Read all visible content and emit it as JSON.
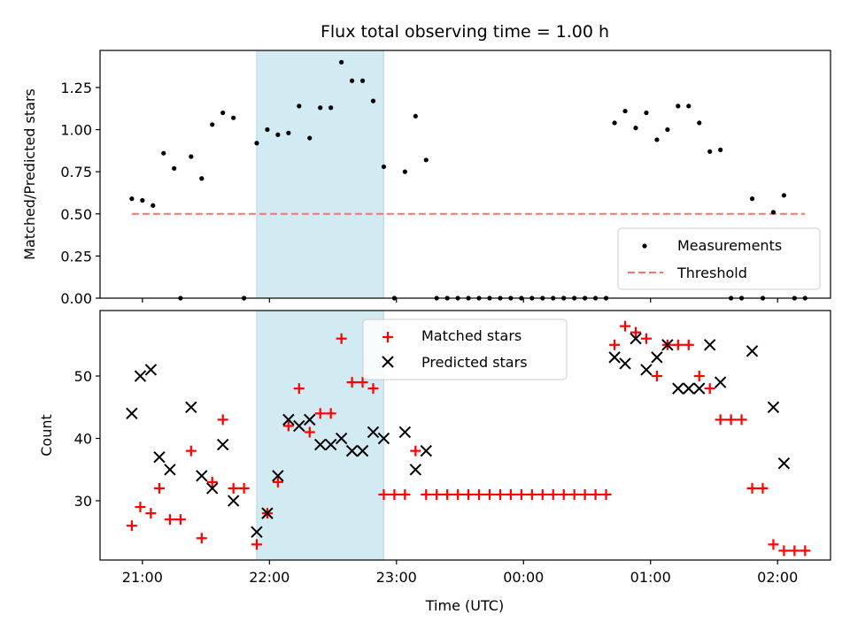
{
  "title": "Flux total observing time = 1.00 h",
  "colors": {
    "shade": "#add8e6",
    "threshold": "#ff7070",
    "matched": "#ff0000",
    "predicted": "#000000"
  },
  "chart_data": [
    {
      "type": "scatter",
      "ylabel": "Matched/Predicted stars",
      "xlabel": "",
      "xlim": [
        "20:40",
        "02:25"
      ],
      "ylim": [
        0,
        1.47
      ],
      "yticks": [
        0.0,
        0.25,
        0.5,
        0.75,
        1.0,
        1.25
      ],
      "ytick_labels": [
        "0.00",
        "0.25",
        "0.50",
        "0.75",
        "1.00",
        "1.25"
      ],
      "shaded_span": [
        "21:54",
        "22:54"
      ],
      "legend": {
        "placement": "lower-right",
        "entries": [
          "Measurements",
          "Threshold"
        ]
      },
      "series": [
        {
          "name": "Measurements",
          "marker": "dot",
          "points": [
            [
              "20:55",
              0.59
            ],
            [
              "21:00",
              0.58
            ],
            [
              "21:05",
              0.55
            ],
            [
              "21:10",
              0.86
            ],
            [
              "21:15",
              0.77
            ],
            [
              "21:18",
              0.0
            ],
            [
              "21:23",
              0.84
            ],
            [
              "21:28",
              0.71
            ],
            [
              "21:33",
              1.03
            ],
            [
              "21:38",
              1.1
            ],
            [
              "21:43",
              1.07
            ],
            [
              "21:48",
              0.0
            ],
            [
              "21:54",
              0.92
            ],
            [
              "21:59",
              1.0
            ],
            [
              "22:04",
              0.97
            ],
            [
              "22:09",
              0.98
            ],
            [
              "22:14",
              1.14
            ],
            [
              "22:19",
              0.95
            ],
            [
              "22:24",
              1.13
            ],
            [
              "22:29",
              1.13
            ],
            [
              "22:34",
              1.4
            ],
            [
              "22:39",
              1.29
            ],
            [
              "22:44",
              1.29
            ],
            [
              "22:49",
              1.17
            ],
            [
              "22:54",
              0.78
            ],
            [
              "22:59",
              0.0
            ],
            [
              "23:04",
              0.75
            ],
            [
              "23:09",
              1.08
            ],
            [
              "23:14",
              0.82
            ],
            [
              "23:19",
              0.0
            ],
            [
              "23:24",
              0.0
            ],
            [
              "23:29",
              0.0
            ],
            [
              "23:34",
              0.0
            ],
            [
              "23:39",
              0.0
            ],
            [
              "23:44",
              0.0
            ],
            [
              "23:49",
              0.0
            ],
            [
              "23:54",
              0.0
            ],
            [
              "23:59",
              0.0
            ],
            [
              "00:04",
              0.0
            ],
            [
              "00:09",
              0.0
            ],
            [
              "00:14",
              0.0
            ],
            [
              "00:19",
              0.0
            ],
            [
              "00:24",
              0.0
            ],
            [
              "00:29",
              0.0
            ],
            [
              "00:34",
              0.0
            ],
            [
              "00:39",
              0.0
            ],
            [
              "00:43",
              1.04
            ],
            [
              "00:48",
              1.11
            ],
            [
              "00:53",
              1.01
            ],
            [
              "00:58",
              1.1
            ],
            [
              "01:03",
              0.94
            ],
            [
              "01:08",
              1.0
            ],
            [
              "01:13",
              1.14
            ],
            [
              "01:18",
              1.14
            ],
            [
              "01:23",
              1.04
            ],
            [
              "01:28",
              0.87
            ],
            [
              "01:33",
              0.88
            ],
            [
              "01:38",
              0.0
            ],
            [
              "01:43",
              0.0
            ],
            [
              "01:48",
              0.59
            ],
            [
              "01:53",
              0.0
            ],
            [
              "01:58",
              0.51
            ],
            [
              "02:03",
              0.61
            ],
            [
              "02:08",
              0.0
            ],
            [
              "02:13",
              0.0
            ]
          ]
        },
        {
          "name": "Threshold",
          "marker": "dashed-line",
          "points": [
            [
              "20:55",
              0.5
            ],
            [
              "02:13",
              0.5
            ]
          ]
        }
      ]
    },
    {
      "type": "scatter",
      "ylabel": "Count",
      "xlabel": "Time (UTC)",
      "xlim": [
        "20:40",
        "02:25"
      ],
      "ylim": [
        20.5,
        60.5
      ],
      "yticks": [
        30,
        40,
        50
      ],
      "ytick_labels": [
        "30",
        "40",
        "50"
      ],
      "xticks": [
        "21:00",
        "22:00",
        "23:00",
        "00:00",
        "01:00",
        "02:00"
      ],
      "xtick_labels": [
        "21:00",
        "22:00",
        "23:00",
        "00:00",
        "01:00",
        "02:00"
      ],
      "shaded_span": [
        "21:54",
        "22:54"
      ],
      "legend": {
        "placement": "upper-center",
        "entries": [
          "Matched stars",
          "Predicted stars"
        ]
      },
      "series": [
        {
          "name": "Matched stars",
          "marker": "plus",
          "points": [
            [
              "20:55",
              26
            ],
            [
              "20:59",
              29
            ],
            [
              "21:04",
              28
            ],
            [
              "21:08",
              32
            ],
            [
              "21:13",
              27
            ],
            [
              "21:18",
              27
            ],
            [
              "21:23",
              38
            ],
            [
              "21:28",
              24
            ],
            [
              "21:33",
              33
            ],
            [
              "21:38",
              43
            ],
            [
              "21:43",
              32
            ],
            [
              "21:48",
              32
            ],
            [
              "21:54",
              23
            ],
            [
              "21:59",
              28
            ],
            [
              "22:04",
              33
            ],
            [
              "22:09",
              42
            ],
            [
              "22:14",
              48
            ],
            [
              "22:19",
              41
            ],
            [
              "22:24",
              44
            ],
            [
              "22:29",
              44
            ],
            [
              "22:34",
              56
            ],
            [
              "22:39",
              49
            ],
            [
              "22:44",
              49
            ],
            [
              "22:49",
              48
            ],
            [
              "22:54",
              31
            ],
            [
              "22:59",
              31
            ],
            [
              "23:04",
              31
            ],
            [
              "23:09",
              38
            ],
            [
              "23:14",
              31
            ],
            [
              "23:19",
              31
            ],
            [
              "23:24",
              31
            ],
            [
              "23:29",
              31
            ],
            [
              "23:34",
              31
            ],
            [
              "23:39",
              31
            ],
            [
              "23:44",
              31
            ],
            [
              "23:49",
              31
            ],
            [
              "23:54",
              31
            ],
            [
              "23:59",
              31
            ],
            [
              "00:04",
              31
            ],
            [
              "00:09",
              31
            ],
            [
              "00:14",
              31
            ],
            [
              "00:19",
              31
            ],
            [
              "00:24",
              31
            ],
            [
              "00:29",
              31
            ],
            [
              "00:34",
              31
            ],
            [
              "00:39",
              31
            ],
            [
              "00:43",
              55
            ],
            [
              "00:48",
              58
            ],
            [
              "00:53",
              57
            ],
            [
              "00:58",
              56
            ],
            [
              "01:03",
              50
            ],
            [
              "01:08",
              55
            ],
            [
              "01:13",
              55
            ],
            [
              "01:18",
              55
            ],
            [
              "01:23",
              50
            ],
            [
              "01:28",
              48
            ],
            [
              "01:33",
              43
            ],
            [
              "01:38",
              43
            ],
            [
              "01:43",
              43
            ],
            [
              "01:48",
              32
            ],
            [
              "01:53",
              32
            ],
            [
              "01:58",
              23
            ],
            [
              "02:03",
              22
            ],
            [
              "02:08",
              22
            ],
            [
              "02:13",
              22
            ]
          ]
        },
        {
          "name": "Predicted stars",
          "marker": "x",
          "points": [
            [
              "20:55",
              44
            ],
            [
              "20:59",
              50
            ],
            [
              "21:04",
              51
            ],
            [
              "21:08",
              37
            ],
            [
              "21:13",
              35
            ],
            [
              "21:23",
              45
            ],
            [
              "21:28",
              34
            ],
            [
              "21:33",
              32
            ],
            [
              "21:38",
              39
            ],
            [
              "21:43",
              30
            ],
            [
              "21:54",
              25
            ],
            [
              "21:59",
              28
            ],
            [
              "22:04",
              34
            ],
            [
              "22:09",
              43
            ],
            [
              "22:14",
              42
            ],
            [
              "22:19",
              43
            ],
            [
              "22:24",
              39
            ],
            [
              "22:29",
              39
            ],
            [
              "22:34",
              40
            ],
            [
              "22:39",
              38
            ],
            [
              "22:44",
              38
            ],
            [
              "22:49",
              41
            ],
            [
              "22:54",
              40
            ],
            [
              "23:04",
              41
            ],
            [
              "23:09",
              35
            ],
            [
              "23:14",
              38
            ],
            [
              "00:43",
              53
            ],
            [
              "00:48",
              52
            ],
            [
              "00:53",
              56
            ],
            [
              "00:58",
              51
            ],
            [
              "01:03",
              53
            ],
            [
              "01:08",
              55
            ],
            [
              "01:13",
              48
            ],
            [
              "01:18",
              48
            ],
            [
              "01:23",
              48
            ],
            [
              "01:28",
              55
            ],
            [
              "01:33",
              49
            ],
            [
              "01:48",
              54
            ],
            [
              "01:58",
              45
            ],
            [
              "02:03",
              36
            ]
          ]
        }
      ]
    }
  ]
}
